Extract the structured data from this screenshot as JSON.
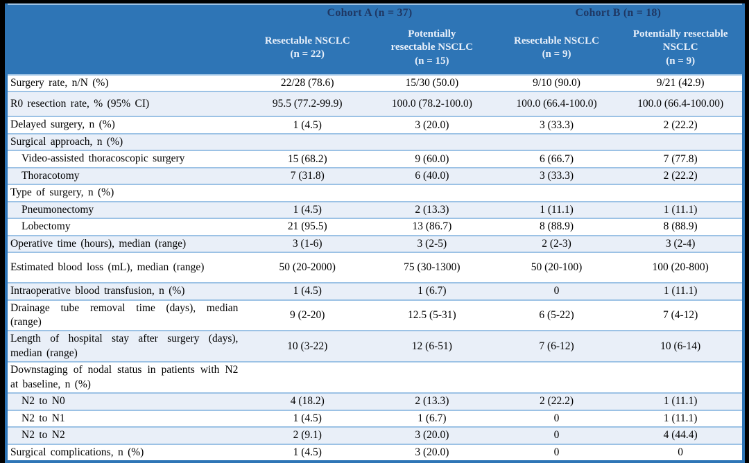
{
  "table": {
    "colors": {
      "page_bg": "#000000",
      "header_bg": "#2E75B6",
      "header_title_text": "#1F3864",
      "header_sub_text": "#E9F0FA",
      "row_alt_bg": "#E9EFF8",
      "row_separator": "#9CC2E5",
      "frame_border": "#2E75B6",
      "body_text": "#000000"
    },
    "cohorts": [
      {
        "label": "Cohort A (n = 37)"
      },
      {
        "label": "Cohort B (n = 18)"
      }
    ],
    "columns": [
      "Resectable NSCLC\n(n = 22)",
      "Potentially\nresectable NSCLC\n(n = 15)",
      "Resectable NSCLC\n(n = 9)",
      "Potentially resectable\nNSCLC\n(n = 9)"
    ],
    "rows": [
      {
        "label": "Surgery rate, n/N (%)",
        "section": false,
        "indent": false,
        "values": [
          "22/28 (78.6)",
          "15/30 (50.0)",
          "9/10 (90.0)",
          "9/21 (42.9)"
        ]
      },
      {
        "label": "R0 resection rate, % (95% CI)",
        "section": false,
        "indent": false,
        "values": [
          "95.5 (77.2-99.9)",
          "100.0 (78.2-100.0)",
          "100.0 (66.4-100.0)",
          "100.0 (66.4-100.00)"
        ]
      },
      {
        "label": "Delayed surgery, n (%)",
        "section": false,
        "indent": false,
        "values": [
          "1 (4.5)",
          "3 (20.0)",
          "3 (33.3)",
          "2 (22.2)"
        ]
      },
      {
        "label": "Surgical approach, n (%)",
        "section": true,
        "indent": false,
        "values": [
          "",
          "",
          "",
          ""
        ]
      },
      {
        "label": "Video-assisted thoracoscopic surgery",
        "section": false,
        "indent": true,
        "values": [
          "15 (68.2)",
          "9 (60.0)",
          "6 (66.7)",
          "7 (77.8)"
        ]
      },
      {
        "label": "Thoracotomy",
        "section": false,
        "indent": true,
        "values": [
          "7 (31.8)",
          "6 (40.0)",
          "3 (33.3)",
          "2 (22.2)"
        ]
      },
      {
        "label": "Type of surgery, n (%)",
        "section": true,
        "indent": false,
        "values": [
          "",
          "",
          "",
          ""
        ]
      },
      {
        "label": "Pneumonectomy",
        "section": false,
        "indent": true,
        "values": [
          "1 (4.5)",
          "2 (13.3)",
          "1 (11.1)",
          "1 (11.1)"
        ]
      },
      {
        "label": "Lobectomy",
        "section": false,
        "indent": true,
        "values": [
          "21 (95.5)",
          "13 (86.7)",
          "8 (88.9)",
          "8 (88.9)"
        ]
      },
      {
        "label": "Operative time (hours), median (range)",
        "section": false,
        "indent": false,
        "values": [
          "3 (1-6)",
          "3 (2-5)",
          "2 (2-3)",
          "3 (2-4)"
        ]
      },
      {
        "label": "Estimated blood loss (mL), median (range)",
        "section": false,
        "indent": false,
        "values": [
          "50 (20-2000)",
          "75 (30-1300)",
          "50 (20-100)",
          "100 (20-800)"
        ]
      },
      {
        "label": "Intraoperative blood transfusion, n (%)",
        "section": false,
        "indent": false,
        "values": [
          "1 (4.5)",
          "1 (6.7)",
          "0",
          "1 (11.1)"
        ]
      },
      {
        "label": "Drainage tube removal time (days), median (range)",
        "section": false,
        "indent": false,
        "values": [
          "9 (2-20)",
          "12.5 (5-31)",
          "6 (5-22)",
          "7 (4-12)"
        ]
      },
      {
        "label": "Length of hospital stay after surgery (days), median (range)",
        "section": false,
        "indent": false,
        "values": [
          "10 (3-22)",
          "12 (6-51)",
          "7 (6-12)",
          "10 (6-14)"
        ]
      },
      {
        "label": "Downstaging of nodal status in patients with N2 at baseline, n (%)",
        "section": true,
        "indent": false,
        "values": [
          "",
          "",
          "",
          ""
        ]
      },
      {
        "label": "N2 to N0",
        "section": false,
        "indent": true,
        "values": [
          "4 (18.2)",
          "2 (13.3)",
          "2 (22.2)",
          "1 (11.1)"
        ]
      },
      {
        "label": "N2 to N1",
        "section": false,
        "indent": true,
        "values": [
          "1 (4.5)",
          "1 (6.7)",
          "0",
          "1 (11.1)"
        ]
      },
      {
        "label": "N2 to N2",
        "section": false,
        "indent": true,
        "values": [
          "2 (9.1)",
          "3 (20.0)",
          "0",
          "4 (44.4)"
        ]
      },
      {
        "label": "Surgical complications, n (%)",
        "section": false,
        "indent": false,
        "values": [
          "1 (4.5)",
          "3 (20.0)",
          "0",
          "0"
        ]
      }
    ]
  }
}
